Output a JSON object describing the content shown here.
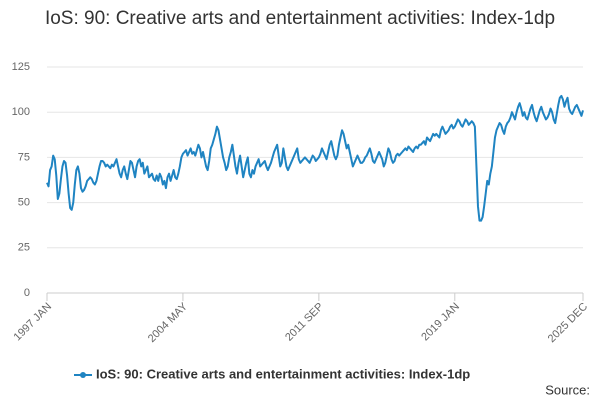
{
  "chart_data": {
    "type": "line",
    "title": "IoS: 90: Creative arts and entertainment activities: Index-1dp",
    "source": "Source:",
    "categories": [
      "1997 JAN",
      null,
      null,
      null,
      null,
      null,
      null,
      null,
      null,
      null,
      null,
      null,
      null,
      null,
      null,
      null,
      null,
      null,
      null,
      null,
      null,
      null,
      null,
      null,
      null,
      null,
      null,
      null,
      null,
      null,
      null,
      null,
      null,
      null,
      null,
      null,
      null,
      null,
      null,
      null,
      null,
      null,
      null,
      null,
      null,
      null,
      null,
      null,
      null,
      null,
      null,
      null,
      null,
      null,
      null,
      null,
      null,
      null,
      null,
      null,
      null,
      null,
      null,
      null,
      null,
      null,
      null,
      null,
      null,
      null,
      null,
      null,
      null,
      null,
      null,
      null,
      null,
      null,
      null,
      null,
      null,
      null,
      null,
      null,
      null,
      null,
      null,
      null,
      "2004 MAY",
      null,
      null,
      null,
      null,
      null,
      null,
      null,
      null,
      null,
      null,
      null,
      null,
      null,
      null,
      null,
      null,
      null,
      null,
      null,
      null,
      null,
      null,
      null,
      null,
      null,
      null,
      null,
      null,
      null,
      null,
      null,
      null,
      null,
      null,
      null,
      null,
      null,
      null,
      null,
      null,
      null,
      null,
      null,
      null,
      null,
      null,
      null,
      null,
      null,
      null,
      null,
      null,
      null,
      null,
      null,
      null,
      null,
      null,
      null,
      null,
      null,
      null,
      null,
      null,
      null,
      null,
      null,
      null,
      null,
      null,
      null,
      null,
      null,
      null,
      null,
      null,
      null,
      null,
      null,
      null,
      null,
      null,
      null,
      null,
      null,
      null,
      null,
      "2011 SEP",
      null,
      null,
      null,
      null,
      null,
      null,
      null,
      null,
      null,
      null,
      null,
      null,
      null,
      null,
      null,
      null,
      null,
      null,
      null,
      null,
      null,
      null,
      null,
      null,
      null,
      null,
      null,
      null,
      null,
      null,
      null,
      null,
      null,
      null,
      null,
      null,
      null,
      null,
      null,
      null,
      null,
      null,
      null,
      null,
      null,
      null,
      null,
      null,
      null,
      null,
      null,
      null,
      null,
      null,
      null,
      null,
      null,
      null,
      null,
      null,
      null,
      null,
      null,
      null,
      null,
      null,
      null,
      null,
      null,
      null,
      null,
      null,
      null,
      null,
      null,
      null,
      null,
      null,
      null,
      null,
      null,
      null,
      null,
      null,
      null,
      null,
      null,
      "2019 JAN",
      null,
      null,
      null,
      null,
      null,
      null,
      null,
      null,
      null,
      null,
      null,
      null,
      null,
      null,
      null,
      null,
      null,
      null,
      null,
      null,
      null,
      null,
      null,
      null,
      null,
      null,
      null,
      null,
      null,
      null,
      null,
      null,
      null,
      null,
      null,
      null,
      null,
      null,
      null,
      null,
      null,
      null,
      null,
      null,
      null,
      null,
      null,
      null,
      null,
      null,
      null,
      null,
      null,
      null,
      null,
      null,
      null,
      null,
      null,
      null,
      null,
      null,
      null,
      null,
      null,
      null,
      null,
      null,
      null,
      null,
      null,
      null,
      null,
      null,
      null,
      null,
      null,
      null,
      null,
      null,
      null,
      null,
      "2025 DEC"
    ],
    "series": [
      {
        "name": "IoS: 90: Creative arts and entertainment activities: Index-1dp",
        "color": "#1f84c2",
        "values": [
          61,
          59,
          68,
          70,
          76,
          74,
          65,
          52,
          55,
          63,
          70,
          73,
          72,
          65,
          55,
          47,
          46,
          50,
          60,
          68,
          70,
          66,
          58,
          56,
          57,
          59,
          62,
          63,
          64,
          63,
          61,
          60,
          62,
          66,
          70,
          73,
          73,
          72,
          70,
          71,
          70,
          69,
          71,
          70,
          72,
          74,
          70,
          66,
          64,
          68,
          70,
          66,
          63,
          68,
          73,
          72,
          68,
          64,
          70,
          73,
          74,
          70,
          72,
          66,
          68,
          70,
          64,
          65,
          66,
          63,
          62,
          65,
          62,
          66,
          64,
          60,
          62,
          58,
          64,
          66,
          62,
          65,
          68,
          64,
          63,
          66,
          70,
          75,
          77,
          78,
          79,
          76,
          78,
          80,
          77,
          78,
          76,
          79,
          82,
          80,
          75,
          78,
          74,
          70,
          68,
          73,
          80,
          82,
          85,
          88,
          92,
          90,
          85,
          80,
          75,
          72,
          68,
          70,
          75,
          78,
          82,
          76,
          70,
          66,
          72,
          76,
          70,
          64,
          68,
          72,
          75,
          66,
          64,
          68,
          66,
          70,
          72,
          74,
          70,
          71,
          72,
          73,
          70,
          68,
          70,
          72,
          75,
          78,
          80,
          82,
          76,
          70,
          72,
          80,
          75,
          70,
          68,
          70,
          72,
          74,
          76,
          78,
          80,
          74,
          72,
          73,
          74,
          75,
          74,
          73,
          72,
          74,
          76,
          75,
          73,
          74,
          75,
          77,
          80,
          78,
          76,
          74,
          78,
          82,
          84,
          80,
          76,
          74,
          76,
          82,
          86,
          90,
          88,
          84,
          80,
          82,
          78,
          74,
          70,
          72,
          74,
          76,
          74,
          72,
          72,
          73,
          75,
          76,
          78,
          80,
          77,
          73,
          72,
          74,
          76,
          78,
          76,
          74,
          70,
          72,
          76,
          80,
          78,
          74,
          72,
          73,
          76,
          77,
          76,
          77,
          78,
          79,
          80,
          79,
          81,
          80,
          79,
          78,
          80,
          81,
          80,
          82,
          82,
          83,
          84,
          82,
          86,
          85,
          84,
          86,
          88,
          87,
          88,
          87,
          86,
          90,
          92,
          90,
          88,
          89,
          90,
          92,
          93,
          91,
          92,
          94,
          96,
          95,
          93,
          92,
          94,
          96,
          95,
          93,
          94,
          95,
          94,
          92,
          70,
          48,
          40,
          40,
          42,
          48,
          55,
          62,
          60,
          66,
          70,
          78,
          86,
          90,
          92,
          94,
          93,
          90,
          88,
          92,
          94,
          95,
          97,
          100,
          98,
          96,
          100,
          103,
          105,
          102,
          98,
          100,
          97,
          96,
          99,
          102,
          104,
          100,
          97,
          95,
          98,
          101,
          103,
          100,
          98,
          96,
          97,
          99,
          102,
          100,
          96,
          94,
          99,
          104,
          108,
          109,
          107,
          103,
          106,
          108,
          102,
          100,
          99,
          101,
          103,
          104,
          102,
          100,
          98,
          101
        ]
      }
    ],
    "ylim": [
      0,
      125
    ],
    "yticks": [
      0,
      25,
      50,
      75,
      100,
      125
    ],
    "grid": true
  }
}
